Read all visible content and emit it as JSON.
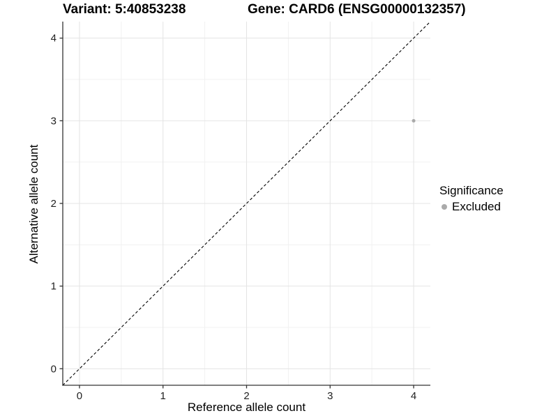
{
  "chart_data": {
    "type": "scatter",
    "title_left": "Variant: 5:40853238",
    "title_right": "Gene: CARD6 (ENSG00000132357)",
    "xlabel": "Reference allele count",
    "ylabel": "Alternative allele count",
    "xlim": [
      -0.2,
      4.2
    ],
    "ylim": [
      -0.2,
      4.2
    ],
    "xticks": [
      "0",
      "1",
      "2",
      "3",
      "4"
    ],
    "yticks": [
      "0",
      "1",
      "2",
      "3",
      "4"
    ],
    "xtick_values": [
      0,
      1,
      2,
      3,
      4
    ],
    "ytick_values": [
      0,
      1,
      2,
      3,
      4
    ],
    "minor_xticks": [
      0.5,
      1.5,
      2.5,
      3.5
    ],
    "minor_yticks": [
      0.5,
      1.5,
      2.5,
      3.5
    ],
    "grid": true,
    "series": [
      {
        "name": "Excluded",
        "color": "#aaaaaa",
        "point_size": 2.5,
        "points": [
          {
            "x": 4,
            "y": 3
          }
        ]
      }
    ],
    "reference_line": {
      "type": "identity",
      "style": "dashed",
      "color": "#000000"
    },
    "legend": {
      "title": "Significance",
      "position": "right",
      "items": [
        {
          "label": "Excluded",
          "color": "#aaaaaa"
        }
      ]
    },
    "colors": {
      "background": "#ffffff",
      "grid_major": "#e4e4e4",
      "grid_minor": "#f1f1f1",
      "axis_line": "#333333",
      "tick_text": "#1f1f1f"
    }
  }
}
